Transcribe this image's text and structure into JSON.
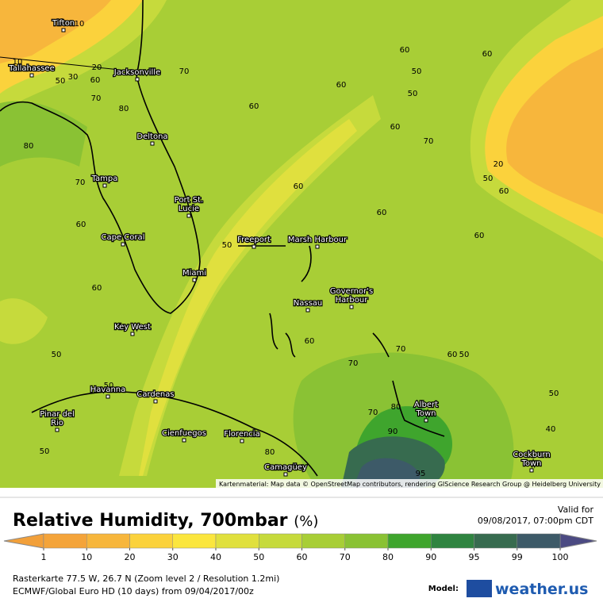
{
  "map": {
    "cities": [
      {
        "lines": [
          "Tifton"
        ]
      },
      {
        "lines": [
          "Tallahassee"
        ]
      },
      {
        "lines": [
          "Jacksonville"
        ]
      },
      {
        "lines": [
          "Deltona"
        ]
      },
      {
        "lines": [
          "Tampa"
        ]
      },
      {
        "lines": [
          "Port St.",
          "Lucie"
        ]
      },
      {
        "lines": [
          "Cape Coral"
        ]
      },
      {
        "lines": [
          "Freeport"
        ]
      },
      {
        "lines": [
          "Marsh Harbour"
        ]
      },
      {
        "lines": [
          "Miami"
        ]
      },
      {
        "lines": [
          "Nassau"
        ]
      },
      {
        "lines": [
          "Governor's",
          "Harbour"
        ]
      },
      {
        "lines": [
          "Key West"
        ]
      },
      {
        "lines": [
          "Havanna"
        ]
      },
      {
        "lines": [
          "Cardenas"
        ]
      },
      {
        "lines": [
          "Pinar del",
          "Rio"
        ]
      },
      {
        "lines": [
          "Cienfuegos"
        ]
      },
      {
        "lines": [
          "Florencia"
        ]
      },
      {
        "lines": [
          "Camagüey"
        ]
      },
      {
        "lines": [
          "Albert",
          "Town"
        ]
      },
      {
        "lines": [
          "Cockburn",
          "Town"
        ]
      }
    ],
    "contour_labels": [
      10,
      10,
      20,
      50,
      30,
      60,
      70,
      70,
      80,
      80,
      70,
      60,
      60,
      50,
      50,
      50,
      60,
      60,
      50,
      60,
      60,
      50,
      60,
      70,
      20,
      50,
      60,
      60,
      60,
      60,
      50,
      60,
      70,
      60,
      50,
      70,
      50,
      70,
      80,
      90,
      40,
      95,
      80
    ],
    "attribution": "Kartenmaterial: Map data © OpenStreetMap contributors, rendering GIScience Research Group @ Heidelberg University"
  },
  "header": {
    "title": "Relative Humidity, 700mbar",
    "unit": "(%)",
    "valid_label": "Valid for",
    "valid_time": "09/08/2017, 07:00pm CDT"
  },
  "legend": {
    "ticks": [
      1,
      10,
      20,
      30,
      40,
      50,
      60,
      70,
      80,
      90,
      95,
      99,
      100
    ],
    "colors": [
      "#f4a43a",
      "#f7b63c",
      "#fbd23c",
      "#fbe63e",
      "#e0e03e",
      "#c6da3c",
      "#a8ce36",
      "#8ac234",
      "#3fa52d",
      "#2f8440",
      "#376b4f",
      "#3d5a68"
    ],
    "below_color": "#f2a03a",
    "above_color": "#4b4a82"
  },
  "footer": {
    "line1": "Rasterkarte 77.5 W, 26.7 N (Zoom level 2 / Resolution 1.2mi)",
    "line2": "ECMWF/Global Euro HD (10 days) from 09/04/2017/00z",
    "model_label": "Model:",
    "brand": "weather.us"
  }
}
